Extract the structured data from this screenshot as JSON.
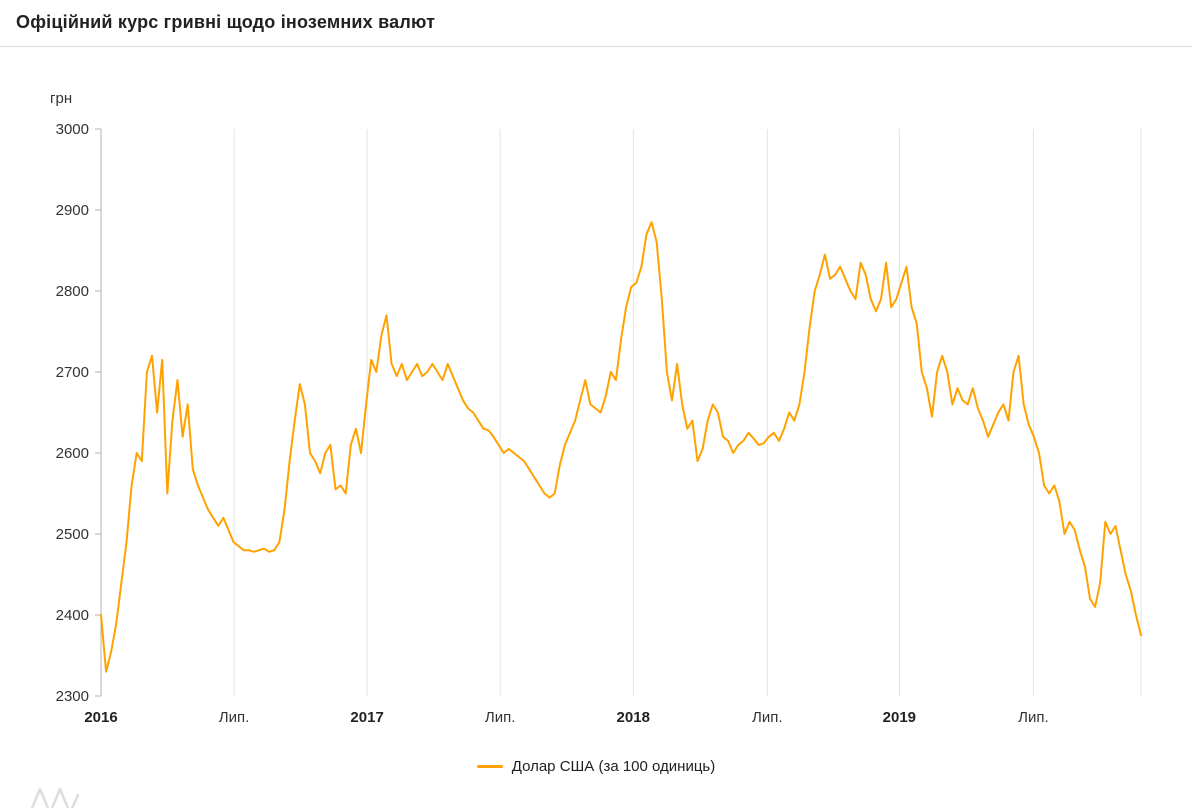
{
  "header": {
    "title": "Офіційний курс гривні щодо іноземних валют"
  },
  "legend": {
    "label": "Долар США (за 100 одиниць)"
  },
  "chart_data": {
    "type": "line",
    "title": "Офіційний курс гривні щодо іноземних валют",
    "ylabel": "грн",
    "ylim": [
      2300,
      3000
    ],
    "y_ticks": [
      3000,
      2900,
      2800,
      2700,
      2600,
      2500,
      2400,
      2300
    ],
    "x_ticks": [
      {
        "label": "2016",
        "bold": true,
        "pos": 0
      },
      {
        "label": "Лип.",
        "bold": false,
        "pos": 26.1
      },
      {
        "label": "2017",
        "bold": true,
        "pos": 52.2
      },
      {
        "label": "Лип.",
        "bold": false,
        "pos": 78.3
      },
      {
        "label": "2018",
        "bold": true,
        "pos": 104.4
      },
      {
        "label": "Лип.",
        "bold": false,
        "pos": 130.7
      },
      {
        "label": "2019",
        "bold": true,
        "pos": 156.6
      },
      {
        "label": "Лип.",
        "bold": false,
        "pos": 182.9
      }
    ],
    "x_note": "weekly points, Jan 2016 – Nov 2019",
    "grid": "vertical-only",
    "legend_position": "bottom-center",
    "colors": {
      "grid": "#e3e3e3",
      "axis": "#b3b3b3",
      "text": "#333333"
    },
    "series": [
      {
        "name": "Долар США (за 100 одиниць)",
        "color": "#ffa200",
        "values": [
          2400,
          2330,
          2355,
          2390,
          2440,
          2490,
          2560,
          2600,
          2590,
          2700,
          2720,
          2650,
          2715,
          2550,
          2640,
          2690,
          2620,
          2660,
          2580,
          2560,
          2545,
          2530,
          2520,
          2510,
          2520,
          2505,
          2490,
          2485,
          2480,
          2480,
          2478,
          2480,
          2482,
          2478,
          2480,
          2490,
          2530,
          2590,
          2640,
          2685,
          2660,
          2600,
          2590,
          2575,
          2600,
          2610,
          2555,
          2560,
          2550,
          2610,
          2630,
          2600,
          2660,
          2715,
          2700,
          2745,
          2770,
          2710,
          2695,
          2710,
          2690,
          2700,
          2710,
          2695,
          2700,
          2710,
          2700,
          2690,
          2710,
          2695,
          2680,
          2665,
          2655,
          2650,
          2640,
          2630,
          2628,
          2620,
          2610,
          2600,
          2605,
          2600,
          2595,
          2590,
          2580,
          2570,
          2560,
          2550,
          2545,
          2550,
          2585,
          2610,
          2625,
          2640,
          2665,
          2690,
          2660,
          2655,
          2650,
          2670,
          2700,
          2690,
          2740,
          2780,
          2805,
          2810,
          2830,
          2870,
          2885,
          2860,
          2790,
          2700,
          2665,
          2710,
          2660,
          2630,
          2640,
          2590,
          2605,
          2640,
          2660,
          2650,
          2620,
          2615,
          2600,
          2610,
          2615,
          2625,
          2618,
          2610,
          2612,
          2620,
          2625,
          2615,
          2630,
          2650,
          2640,
          2660,
          2700,
          2755,
          2800,
          2820,
          2845,
          2815,
          2820,
          2830,
          2815,
          2800,
          2790,
          2835,
          2820,
          2790,
          2775,
          2790,
          2835,
          2780,
          2790,
          2810,
          2830,
          2780,
          2760,
          2700,
          2680,
          2645,
          2700,
          2720,
          2700,
          2660,
          2680,
          2665,
          2660,
          2680,
          2655,
          2640,
          2620,
          2635,
          2650,
          2660,
          2640,
          2700,
          2720,
          2660,
          2635,
          2620,
          2600,
          2560,
          2550,
          2560,
          2540,
          2500,
          2515,
          2505,
          2480,
          2460,
          2420,
          2410,
          2440,
          2515,
          2500,
          2510,
          2480,
          2450,
          2430,
          2400,
          2375
        ]
      }
    ]
  }
}
